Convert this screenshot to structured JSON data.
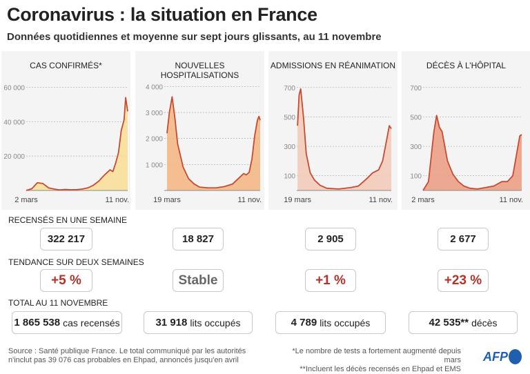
{
  "header": {
    "title": "Coronavirus : la situation en France",
    "subtitle": "Données quotidiennes et moyenne sur sept jours glissants, au 11 novembre"
  },
  "colors": {
    "line": "#c8492f",
    "cases_fill": "#f9dd95",
    "hosp_fill": "#f5b47f",
    "rea_fill": "#f2c8b5",
    "deaths_fill": "#eb9a7f",
    "trend": "#b3322a",
    "afp": "#1f5fae"
  },
  "chart_data": [
    {
      "type": "line",
      "title": "CAS CONFIRMÉS*",
      "x_start": "2020-03-02",
      "x_end": "2020-11-11",
      "xticks": [
        "2 mars",
        "11 nov."
      ],
      "yticks": [
        {
          "v": 20000,
          "label": "20 000"
        },
        {
          "v": 40000,
          "label": "40 000"
        },
        {
          "v": 60000,
          "label": "60 000"
        }
      ],
      "ylim": [
        0,
        65000
      ],
      "grid": true,
      "x": [
        "2020-03-02",
        "2020-03-16",
        "2020-03-30",
        "2020-04-13",
        "2020-04-27",
        "2020-05-11",
        "2020-05-25",
        "2020-06-08",
        "2020-06-22",
        "2020-07-06",
        "2020-07-20",
        "2020-08-03",
        "2020-08-17",
        "2020-08-31",
        "2020-09-14",
        "2020-09-28",
        "2020-10-05",
        "2020-10-12",
        "2020-10-19",
        "2020-10-26",
        "2020-11-02",
        "2020-11-06",
        "2020-11-11"
      ],
      "values": [
        0,
        1000,
        4500,
        4000,
        1500,
        800,
        300,
        600,
        400,
        500,
        800,
        1500,
        3000,
        5500,
        9000,
        12000,
        11000,
        16000,
        22000,
        35000,
        41000,
        54000,
        46000
      ]
    },
    {
      "type": "line",
      "title": "NOUVELLES HOSPITALISATIONS",
      "x_start": "2020-03-12",
      "x_end": "2020-11-11",
      "xticks": [
        "19 mars",
        "11 nov."
      ],
      "tick_dates": [
        "2020-03-19",
        "2020-11-11"
      ],
      "yticks": [
        {
          "v": 1000,
          "label": "1 000"
        },
        {
          "v": 2000,
          "label": "2 000"
        },
        {
          "v": 3000,
          "label": "3 000"
        },
        {
          "v": 4000,
          "label": "4 000"
        }
      ],
      "ylim": [
        0,
        4300
      ],
      "grid": true,
      "x": [
        "2020-03-19",
        "2020-03-25",
        "2020-04-01",
        "2020-04-08",
        "2020-04-15",
        "2020-04-29",
        "2020-05-13",
        "2020-05-27",
        "2020-06-10",
        "2020-07-01",
        "2020-07-22",
        "2020-08-12",
        "2020-09-02",
        "2020-09-16",
        "2020-09-30",
        "2020-10-07",
        "2020-10-14",
        "2020-10-21",
        "2020-10-28",
        "2020-11-04",
        "2020-11-08",
        "2020-11-11"
      ],
      "values": [
        2200,
        3000,
        3600,
        2800,
        1800,
        900,
        450,
        250,
        130,
        100,
        100,
        150,
        250,
        450,
        650,
        600,
        700,
        1200,
        2100,
        2700,
        2850,
        2700
      ]
    },
    {
      "type": "line",
      "title": "ADMISSIONS EN RÉANIMATION",
      "x_start": "2020-03-17",
      "x_end": "2020-11-11",
      "xticks": [
        "19 mars",
        "11 nov."
      ],
      "tick_dates": [
        "2020-03-19",
        "2020-11-11"
      ],
      "yticks": [
        {
          "v": 100,
          "label": "100"
        },
        {
          "v": 300,
          "label": "300"
        },
        {
          "v": 500,
          "label": "500"
        },
        {
          "v": 700,
          "label": "700"
        }
      ],
      "ylim": [
        0,
        760
      ],
      "grid": true,
      "x": [
        "2020-03-19",
        "2020-03-23",
        "2020-03-27",
        "2020-04-03",
        "2020-04-10",
        "2020-04-20",
        "2020-05-01",
        "2020-05-15",
        "2020-06-01",
        "2020-07-01",
        "2020-08-01",
        "2020-08-20",
        "2020-09-10",
        "2020-09-25",
        "2020-10-10",
        "2020-10-20",
        "2020-10-30",
        "2020-11-06",
        "2020-11-11"
      ],
      "values": [
        440,
        650,
        690,
        500,
        250,
        120,
        70,
        35,
        15,
        10,
        20,
        30,
        80,
        120,
        140,
        200,
        340,
        440,
        420
      ]
    },
    {
      "type": "line",
      "title": "DÉCÈS À L’HÔPITAL",
      "x_start": "2020-03-02",
      "x_end": "2020-11-11",
      "xticks": [
        "2 mars",
        "11 nov."
      ],
      "yticks": [
        {
          "v": 100,
          "label": "100"
        },
        {
          "v": 300,
          "label": "300"
        },
        {
          "v": 500,
          "label": "500"
        },
        {
          "v": 700,
          "label": "700"
        }
      ],
      "ylim": [
        0,
        760
      ],
      "grid": true,
      "x": [
        "2020-03-02",
        "2020-03-16",
        "2020-03-30",
        "2020-04-06",
        "2020-04-13",
        "2020-04-20",
        "2020-05-04",
        "2020-05-18",
        "2020-06-01",
        "2020-06-15",
        "2020-07-01",
        "2020-07-20",
        "2020-08-10",
        "2020-08-31",
        "2020-09-21",
        "2020-10-05",
        "2020-10-19",
        "2020-10-29",
        "2020-11-06",
        "2020-11-11"
      ],
      "values": [
        0,
        60,
        400,
        510,
        430,
        400,
        200,
        110,
        60,
        30,
        15,
        10,
        20,
        30,
        60,
        60,
        100,
        250,
        370,
        380
      ]
    }
  ],
  "stats": {
    "weekly_label": "RECENSÉS EN UNE SEMAINE",
    "trend_label": "TENDANCE SUR DEUX SEMAINES",
    "total_label": "TOTAL AU 11 NOVEMBRE",
    "weekly": [
      "322 217",
      "18 827",
      "2 905",
      "2 677"
    ],
    "trend": [
      "+5 %",
      "Stable",
      "+1 %",
      "+23 %"
    ],
    "total": [
      {
        "value": "1 865 538",
        "unit": "cas recensés"
      },
      {
        "value": "31 918",
        "unit": "lits occupés"
      },
      {
        "value": "4 789",
        "unit": "lits occupés"
      },
      {
        "value": "42 535**",
        "unit": "décès"
      }
    ]
  },
  "footer": {
    "source_1": "Source : Santé publique France. Le total communiqué par les autorités",
    "source_2": "n'inclut pas 39 076 cas probables en Ehpad, annoncés jusqu'en avril",
    "note_1": "*Le nombre de tests a fortement augmenté depuis mars",
    "note_2": "**Incluent les décès recensés en Ehpad et EMS",
    "logo": "AFP"
  }
}
